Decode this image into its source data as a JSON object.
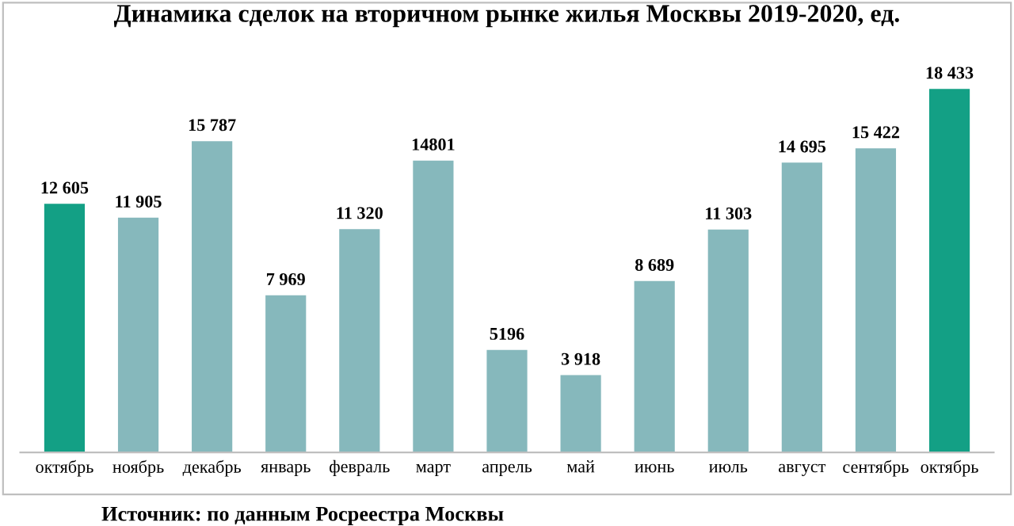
{
  "chart_data": {
    "type": "bar",
    "title": "Динамика сделок на вторичном рынке жилья Москвы 2019-2020, ед.",
    "categories": [
      "октябрь",
      "ноябрь",
      "декабрь",
      "январь",
      "февраль",
      "март",
      "апрель",
      "май",
      "июнь",
      "июль",
      "август",
      "сентябрь",
      "октябрь"
    ],
    "values": [
      12605,
      11905,
      15787,
      7969,
      11320,
      14801,
      5196,
      3918,
      8689,
      11303,
      14695,
      15422,
      18433
    ],
    "colors": [
      "#13a085",
      "#86b8bc",
      "#86b8bc",
      "#86b8bc",
      "#86b8bc",
      "#86b8bc",
      "#86b8bc",
      "#86b8bc",
      "#86b8bc",
      "#86b8bc",
      "#86b8bc",
      "#86b8bc",
      "#13a085"
    ],
    "value_labels": [
      "12 605",
      "11 905",
      "15 787",
      "7 969",
      "11 320",
      "14801",
      "5196",
      "3 918",
      "8 689",
      "11 303",
      "14 695",
      "15 422",
      "18 433"
    ],
    "annotations": [
      "Источник: по данным Росреестра Москвы"
    ],
    "grid": false,
    "legend": false
  }
}
